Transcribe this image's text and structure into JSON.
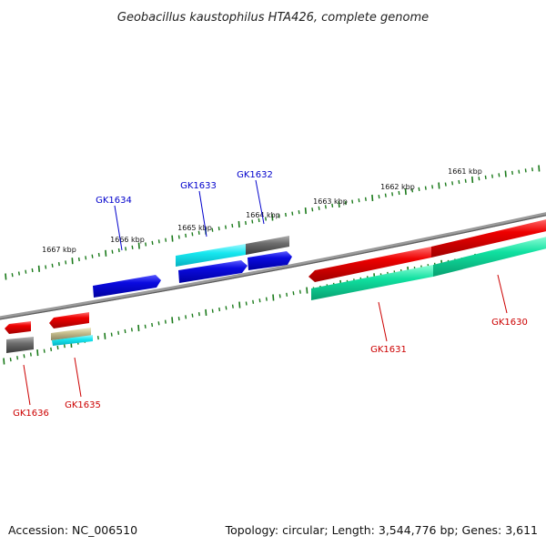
{
  "title": "Geobacillus kaustophilus HTA426, complete genome",
  "footer": {
    "accession": "Accession: NC_006510",
    "summary": "Topology: circular; Length: 3,544,776 bp; Genes: 3,611"
  },
  "colors": {
    "forward_label": "#0000cc",
    "reverse_label": "#cc0000",
    "backbone": "#808080",
    "tick": "#1a7a1a",
    "red": "#e00000",
    "blue": "#0a0ae0",
    "cyan": "#18e8f0",
    "gray": "#707070",
    "green": "#10e0a0",
    "tan": "#c8c090"
  },
  "scale_labels": [
    "1661 kbp",
    "1662 kbp",
    "1663 kbp",
    "1664 kbp",
    "1665 kbp",
    "1666 kbp",
    "1667 kbp"
  ],
  "gene_labels": {
    "forward": [
      "GK1632",
      "GK1633",
      "GK1634"
    ],
    "reverse": [
      "GK1630",
      "GK1631",
      "GK1635",
      "GK1636"
    ]
  }
}
